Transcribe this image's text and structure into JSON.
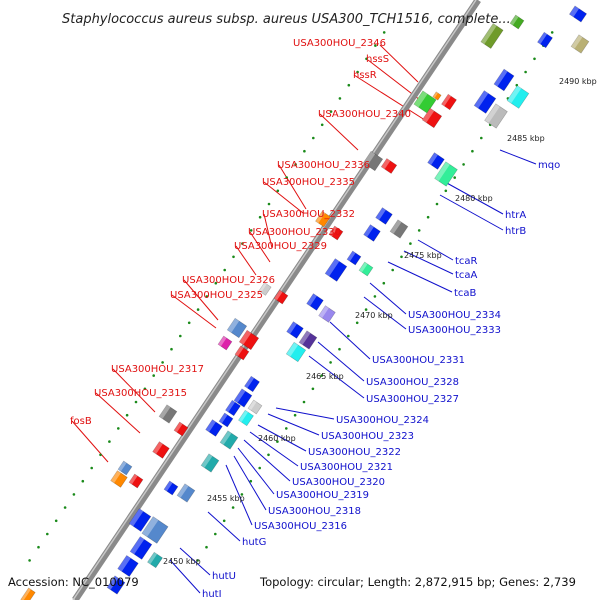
{
  "title": "Staphylococcus aureus subsp. aureus USA300_TCH1516, complete...",
  "footer": {
    "accession": "Accession: NC_010079",
    "summary": "Topology: circular; Length: 2,872,915 bp; Genes: 2,739"
  },
  "colors": {
    "backbone": "#8a8a8a",
    "forward_label": "#e01010",
    "reverse_label": "#1010cc",
    "tick_dots": "#1a8a1a"
  },
  "ticks": [
    "2490 kbp",
    "2485 kbp",
    "2480 kbp",
    "2475 kbp",
    "2470 kbp",
    "2465 kbp",
    "2460 kbp",
    "2455 kbp",
    "2450 kbp"
  ],
  "labels_left": [
    "USA300HOU_2346",
    "hssS",
    "hssR",
    "USA300HOU_2340",
    "USA300HOU_2336",
    "USA300HOU_2335",
    "USA300HOU_2332",
    "USA300HOU_2330",
    "USA300HOU_2329",
    "USA300HOU_2326",
    "USA300HOU_2325",
    "USA300HOU_2317",
    "USA300HOU_2315",
    "fosB"
  ],
  "labels_right": [
    "mqo",
    "htrA",
    "htrB",
    "tcaR",
    "tcaA",
    "tcaB",
    "USA300HOU_2334",
    "USA300HOU_2333",
    "USA300HOU_2331",
    "USA300HOU_2328",
    "USA300HOU_2327",
    "USA300HOU_2324",
    "USA300HOU_2323",
    "USA300HOU_2322",
    "USA300HOU_2321",
    "USA300HOU_2320",
    "USA300HOU_2319",
    "USA300HOU_2318",
    "USA300HOU_2316",
    "hutG",
    "hutU",
    "hutI"
  ]
}
